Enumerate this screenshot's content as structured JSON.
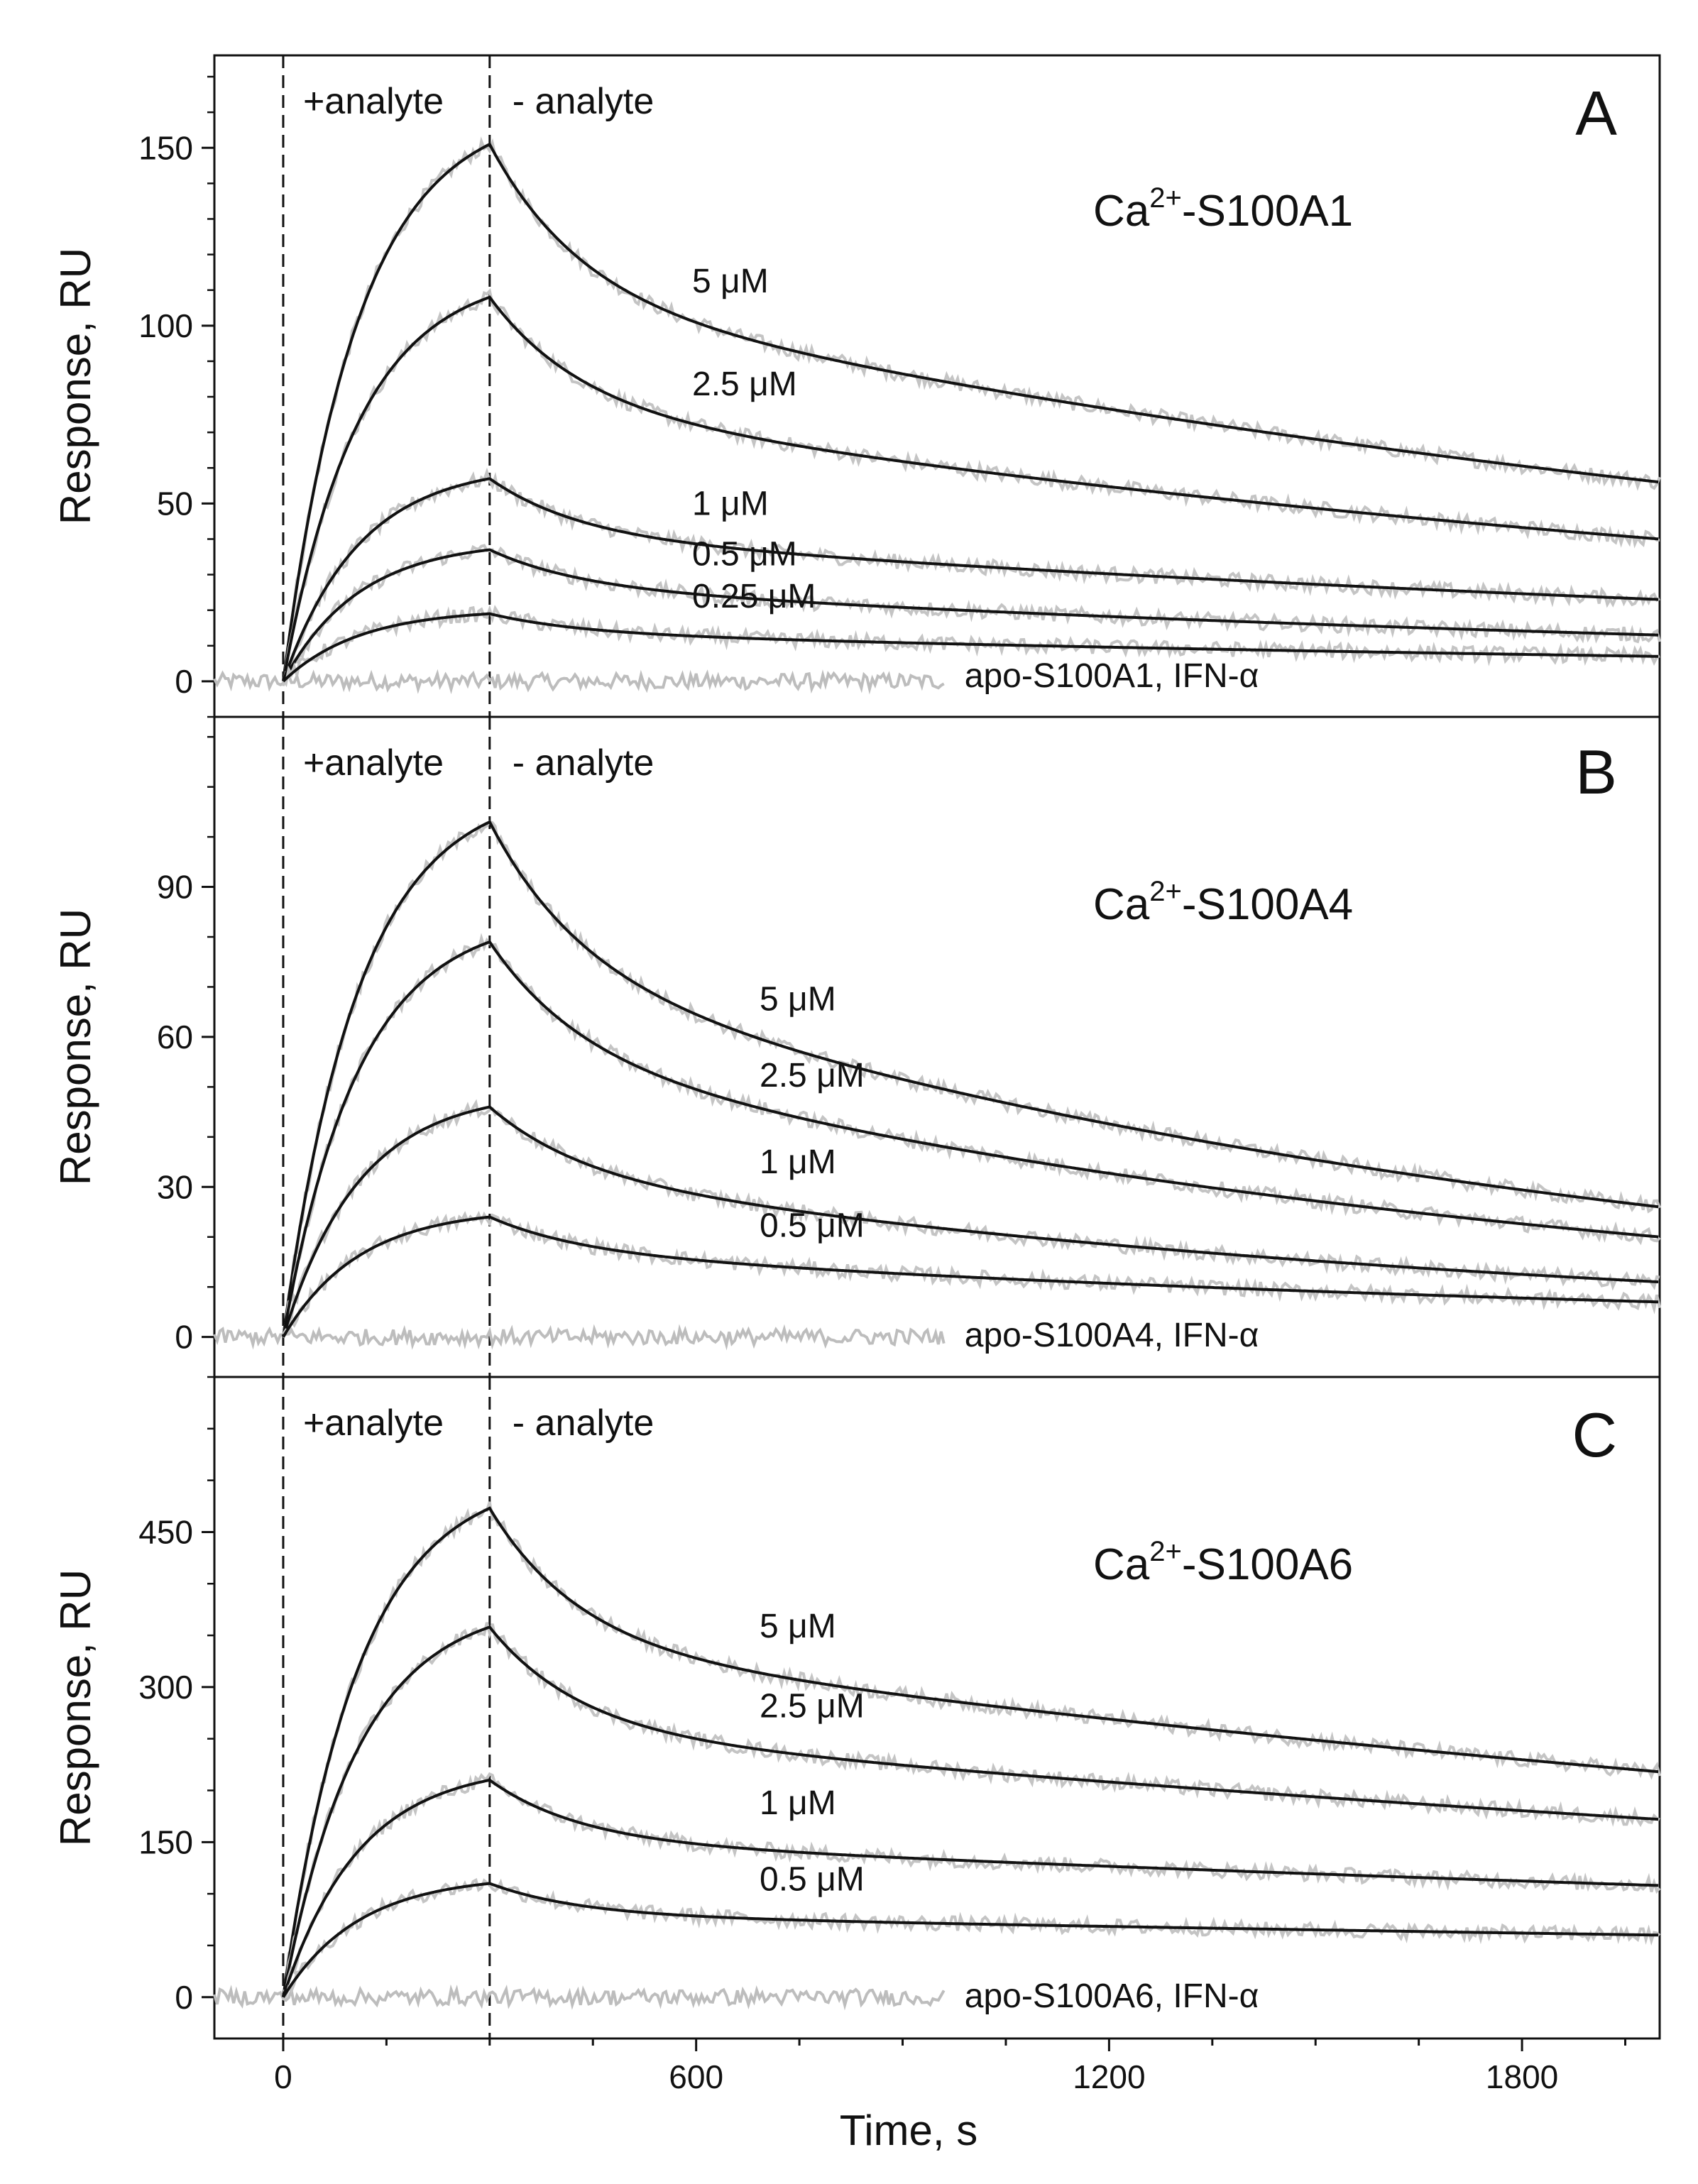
{
  "chart_data": {
    "type": "line",
    "x_axis": {
      "label": "Time, s",
      "xlim": [
        -100,
        2000
      ],
      "ticks": [
        0,
        600,
        1200,
        1800
      ],
      "minor_step": 150
    },
    "injection_time": 0,
    "dissociation_start": 300,
    "phase_labels": {
      "association": "+analyte",
      "dissociation": "- analyte"
    },
    "panels": [
      {
        "letter": "A",
        "protein_base": "Ca",
        "protein_sup": "2+",
        "protein_rest": "-S100A1",
        "ylabel": "Response, RU",
        "ylim": [
          -10,
          176
        ],
        "yticks": [
          0,
          50,
          100,
          150
        ],
        "minor_step": 10,
        "control_label": "apo-S100A1, IFN-α",
        "series": [
          {
            "name": "5 μM",
            "peak": 151,
            "end": 56
          },
          {
            "name": "2.5 μM",
            "peak": 108,
            "end": 40
          },
          {
            "name": "1 μM",
            "peak": 57,
            "end": 23
          },
          {
            "name": "0.5 μM",
            "peak": 37,
            "end": 13
          },
          {
            "name": "0.25 μM",
            "peak": 19,
            "end": 7
          }
        ]
      },
      {
        "letter": "B",
        "protein_base": "Ca",
        "protein_sup": "2+",
        "protein_rest": "-S100A4",
        "ylabel": "Response, RU",
        "ylim": [
          -8,
          124
        ],
        "yticks": [
          0,
          30,
          60,
          90
        ],
        "minor_step": 10,
        "control_label": "apo-S100A4, IFN-α",
        "series": [
          {
            "name": "5 μM",
            "peak": 103,
            "end": 26
          },
          {
            "name": "2.5 μM",
            "peak": 79,
            "end": 20
          },
          {
            "name": "1 μM",
            "peak": 46,
            "end": 11
          },
          {
            "name": "0.5 μM",
            "peak": 24,
            "end": 7
          }
        ]
      },
      {
        "letter": "C",
        "protein_base": "Ca",
        "protein_sup": "2+",
        "protein_rest": "-S100A6",
        "ylabel": "Response, RU",
        "ylim": [
          -40,
          600
        ],
        "yticks": [
          0,
          150,
          300,
          450
        ],
        "minor_step": 50,
        "control_label": "apo-S100A6, IFN-α",
        "series": [
          {
            "name": "5 μM",
            "peak": 473,
            "end": 218
          },
          {
            "name": "2.5 μM",
            "peak": 358,
            "end": 172
          },
          {
            "name": "1 μM",
            "peak": 210,
            "end": 108
          },
          {
            "name": "0.5 μM",
            "peak": 110,
            "end": 60
          }
        ]
      }
    ]
  }
}
